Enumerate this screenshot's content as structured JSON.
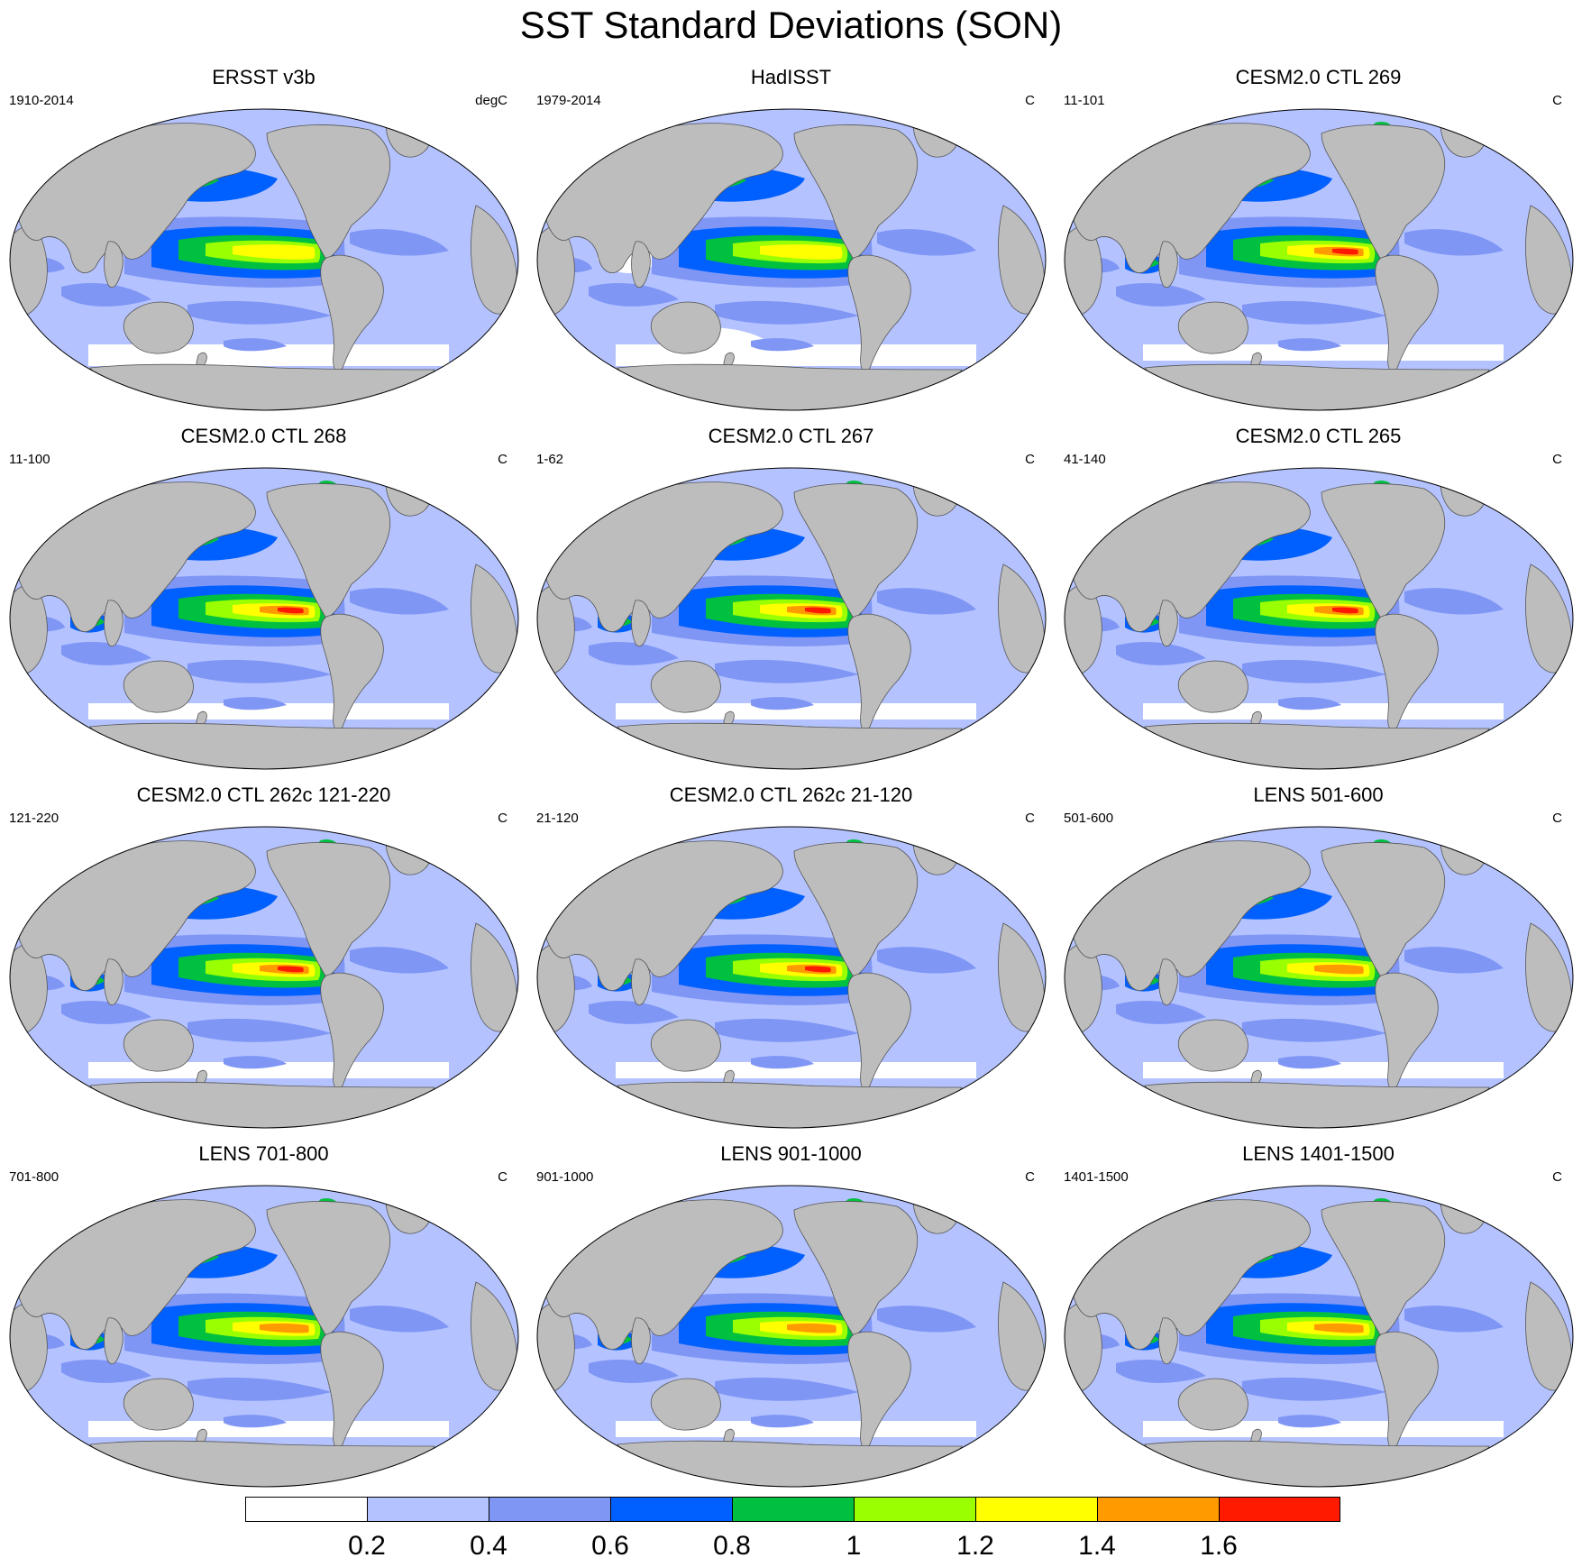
{
  "title": "SST Standard Deviations (SON)",
  "colors": {
    "land": "#bdbdbd",
    "ocean_levels": [
      "#ffffff",
      "#b4c3ff",
      "#8096f5",
      "#0060ff",
      "#00c040",
      "#9aff00",
      "#ffff00",
      "#ff9a00",
      "#ff1a00"
    ]
  },
  "panels": [
    {
      "title": "ERSST v3b",
      "left": "1910-2014",
      "right": "degC"
    },
    {
      "title": "HadISST",
      "left": "1979-2014",
      "right": "C"
    },
    {
      "title": "CESM2.0 CTL 269",
      "left": "11-101",
      "right": "C"
    },
    {
      "title": "CESM2.0 CTL 268",
      "left": "11-100",
      "right": "C"
    },
    {
      "title": "CESM2.0 CTL 267",
      "left": "1-62",
      "right": "C"
    },
    {
      "title": "CESM2.0 CTL 265",
      "left": "41-140",
      "right": "C"
    },
    {
      "title": "CESM2.0 CTL 262c 121-220",
      "left": "121-220",
      "right": "C"
    },
    {
      "title": "CESM2.0 CTL 262c 21-120",
      "left": "21-120",
      "right": "C"
    },
    {
      "title": "LENS 501-600",
      "left": "501-600",
      "right": "C"
    },
    {
      "title": "LENS 701-800",
      "left": "701-800",
      "right": "C"
    },
    {
      "title": "LENS 901-1000",
      "left": "901-1000",
      "right": "C"
    },
    {
      "title": "LENS 1401-1500",
      "left": "1401-1500",
      "right": "C"
    }
  ],
  "colorbar": {
    "labels": [
      "0.2",
      "0.4",
      "0.6",
      "0.8",
      "1",
      "1.2",
      "1.4",
      "1.6"
    ]
  }
}
